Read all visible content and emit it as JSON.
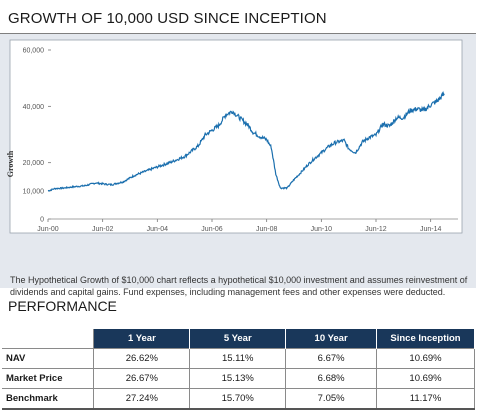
{
  "growth_title": "GROWTH OF 10,000 USD SINCE INCEPTION",
  "chart_data": {
    "type": "line",
    "title": "",
    "ylabel": "Growth",
    "xlabel": "",
    "x_ticks": [
      "Jun-00",
      "Jun-02",
      "Jun-04",
      "Jun-06",
      "Jun-08",
      "Jun-10",
      "Jun-12",
      "Jun-14"
    ],
    "y_ticks": [
      "0",
      "10,000",
      "20,000",
      "40,000",
      "60,000"
    ],
    "ylim": [
      0,
      60000
    ],
    "xlim": [
      "2000-06",
      "2015-06"
    ],
    "grid": false,
    "line_color": "#1b6fae",
    "series": [
      {
        "name": "",
        "x": [
          "2000-06",
          "2000-09",
          "2001-01",
          "2001-06",
          "2001-10",
          "2002-03",
          "2002-08",
          "2002-10",
          "2003-03",
          "2003-08",
          "2004-01",
          "2004-06",
          "2004-12",
          "2005-06",
          "2005-12",
          "2006-03",
          "2006-06",
          "2006-09",
          "2006-12",
          "2007-03",
          "2007-06",
          "2007-10",
          "2007-12",
          "2008-03",
          "2008-06",
          "2008-08",
          "2008-10",
          "2008-12",
          "2009-03",
          "2009-06",
          "2009-09",
          "2009-12",
          "2010-03",
          "2010-06",
          "2010-09",
          "2010-12",
          "2011-04",
          "2011-06",
          "2011-09",
          "2011-12",
          "2012-03",
          "2012-06",
          "2012-09",
          "2012-12",
          "2013-03",
          "2013-06",
          "2013-09",
          "2013-12",
          "2014-03",
          "2014-06",
          "2014-09",
          "2014-12"
        ],
        "values": [
          10000,
          10800,
          11000,
          11500,
          11800,
          12800,
          12300,
          12200,
          13200,
          15500,
          17000,
          18500,
          20200,
          22200,
          26000,
          29800,
          31500,
          33200,
          37000,
          38300,
          36000,
          33200,
          30800,
          29300,
          28200,
          25500,
          16000,
          11000,
          11000,
          14000,
          16500,
          19200,
          21500,
          23500,
          25600,
          27100,
          27900,
          25000,
          23500,
          27300,
          29000,
          29800,
          33700,
          33000,
          35900,
          36000,
          38500,
          39100,
          38500,
          40500,
          42000,
          44500
        ]
      }
    ]
  },
  "footnote": "The Hypothetical Growth of $10,000 chart reflects a hypothetical $10,000 investment and assumes reinvestment of dividends and capital gains. Fund expenses, including management fees and other expenses were deducted.",
  "performance": {
    "title": "PERFORMANCE",
    "columns": [
      "1 Year",
      "5 Year",
      "10 Year",
      "Since Inception"
    ],
    "rows": [
      {
        "label": "NAV",
        "values": [
          "26.62%",
          "15.11%",
          "6.67%",
          "10.69%"
        ]
      },
      {
        "label": "Market Price",
        "values": [
          "26.67%",
          "15.13%",
          "6.68%",
          "10.69%"
        ]
      },
      {
        "label": "Benchmark",
        "values": [
          "27.24%",
          "15.70%",
          "7.05%",
          "11.17%"
        ]
      }
    ]
  }
}
